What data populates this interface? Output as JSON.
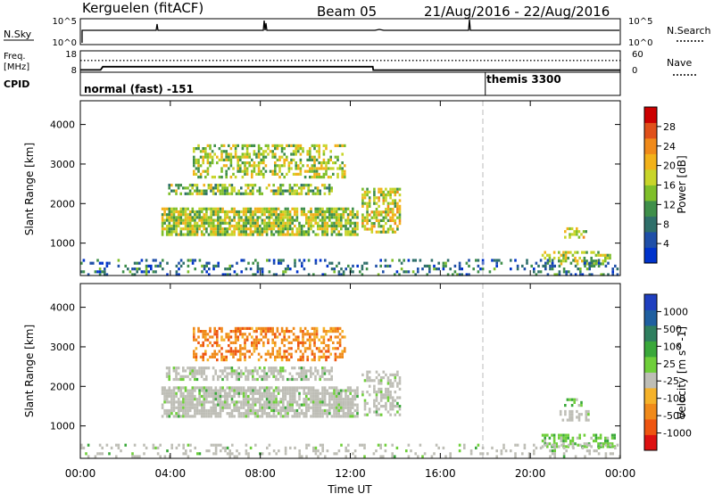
{
  "header": {
    "station": "Kerguelen (fitACF)",
    "beam": "Beam 05",
    "date_range": "21/Aug/2016 - 22/Aug/2016"
  },
  "status_panels": {
    "nsky": {
      "label": "N.Sky",
      "left_ticks": [
        "10^5",
        "10^0"
      ],
      "right_ticks": [
        "10^5",
        "10^0"
      ],
      "right_label": "N.Search"
    },
    "freq": {
      "label_line1": "Freq.",
      "label_line2": "[MHz]",
      "left_ticks": [
        "18",
        "8"
      ],
      "right_ticks": [
        "60",
        "0"
      ],
      "right_label": "Nave",
      "freq_steps": [
        {
          "t": 0.0,
          "mhz": 9.1
        },
        {
          "t": 0.9,
          "mhz": 9.1
        },
        {
          "t": 1.0,
          "mhz": 10.6
        },
        {
          "t": 13.0,
          "mhz": 10.6
        },
        {
          "t": 13.02,
          "mhz": 9.0
        },
        {
          "t": 24.0,
          "mhz": 9.0
        }
      ],
      "nave_level": 0.55
    },
    "cpid": {
      "label": "CPID",
      "segments": [
        {
          "text": "normal (fast) -151",
          "start_h": 0
        },
        {
          "text": "themis 3300",
          "start_h": 18
        }
      ]
    }
  },
  "colors": {
    "power_scale": [
      "#0033cc",
      "#1f4fa8",
      "#2f6f6a",
      "#3f8f4a",
      "#7fbf2a",
      "#c8d52a",
      "#f2b21a",
      "#f08a1a",
      "#e0501a",
      "#cc0000"
    ],
    "velocity_scale": [
      "#dd1111",
      "#ee5511",
      "#f08a1a",
      "#f5b22a",
      "#bebeb6",
      "#6fcf3a",
      "#3aa83a",
      "#2f7f5f",
      "#1f5fa0",
      "#1f3fbf"
    ],
    "ground_scatter": "#bebeb6",
    "text": "#000000"
  },
  "chart_data": [
    {
      "type": "heatmap",
      "name": "power",
      "ylabel": "Slant Range [km]",
      "xlabel": "",
      "xlim": [
        0,
        24
      ],
      "ylim": [
        180,
        4600
      ],
      "yticks": [
        "1000",
        "2000",
        "3000",
        "4000"
      ],
      "colorbar": {
        "label": "Power [dB]",
        "ticks": [
          "4",
          "8",
          "12",
          "16",
          "20",
          "24",
          "28"
        ],
        "range": [
          0,
          30
        ]
      },
      "regions": [
        {
          "t0": 3.6,
          "t1": 12.3,
          "r0": 1250,
          "r1": 1900,
          "level": 0.5,
          "density": 0.8
        },
        {
          "t0": 3.8,
          "t1": 11.2,
          "r0": 2250,
          "r1": 2500,
          "level": 0.45,
          "density": 0.6
        },
        {
          "t0": 5.0,
          "t1": 11.8,
          "r0": 2650,
          "r1": 3500,
          "level": 0.5,
          "density": 0.5
        },
        {
          "t0": 12.5,
          "t1": 14.2,
          "r0": 1300,
          "r1": 2400,
          "level": 0.55,
          "density": 0.6
        },
        {
          "t0": 21.5,
          "t1": 22.5,
          "r0": 1150,
          "r1": 1400,
          "level": 0.55,
          "density": 0.6
        },
        {
          "t0": 20.5,
          "t1": 23.5,
          "r0": 450,
          "r1": 800,
          "level": 0.5,
          "density": 0.5
        },
        {
          "t0": 0.0,
          "t1": 24.0,
          "r0": 200,
          "r1": 600,
          "level": 0.2,
          "density": 0.25
        }
      ]
    },
    {
      "type": "heatmap",
      "name": "velocity",
      "ylabel": "Slant Range [km]",
      "xlabel": "Time UT",
      "xlim": [
        0,
        24
      ],
      "ylim": [
        180,
        4600
      ],
      "xticks": [
        "00:00",
        "04:00",
        "08:00",
        "12:00",
        "16:00",
        "20:00",
        "00:00"
      ],
      "yticks": [
        "1000",
        "2000",
        "3000",
        "4000"
      ],
      "colorbar": {
        "label": "Velocity [m s^-1]",
        "ticks": [
          "1000",
          "500",
          "100",
          "25",
          "-25",
          "-100",
          "-500",
          "-1000"
        ],
        "range": [
          -1200,
          1200
        ]
      },
      "regions": [
        {
          "t0": 3.6,
          "t1": 12.3,
          "r0": 1250,
          "r1": 2000,
          "velocity": 0,
          "density": 0.8
        },
        {
          "t0": 3.8,
          "t1": 11.2,
          "r0": 2200,
          "r1": 2500,
          "velocity": 0,
          "density": 0.6
        },
        {
          "t0": 5.0,
          "t1": 11.8,
          "r0": 2650,
          "r1": 3500,
          "velocity": -300,
          "density": 0.5
        },
        {
          "t0": 12.5,
          "t1": 14.2,
          "r0": 1300,
          "r1": 2400,
          "velocity": 0,
          "density": 0.5
        },
        {
          "t0": 21.3,
          "t1": 22.6,
          "r0": 1150,
          "r1": 1400,
          "velocity": 0,
          "density": 0.6
        },
        {
          "t0": 21.5,
          "t1": 22.3,
          "r0": 1550,
          "r1": 1700,
          "velocity": 300,
          "density": 0.5
        },
        {
          "t0": 20.5,
          "t1": 23.8,
          "r0": 450,
          "r1": 800,
          "velocity": 100,
          "density": 0.5
        },
        {
          "t0": 0.0,
          "t1": 24.0,
          "r0": 200,
          "r1": 550,
          "velocity": 0,
          "density": 0.2
        }
      ]
    }
  ]
}
